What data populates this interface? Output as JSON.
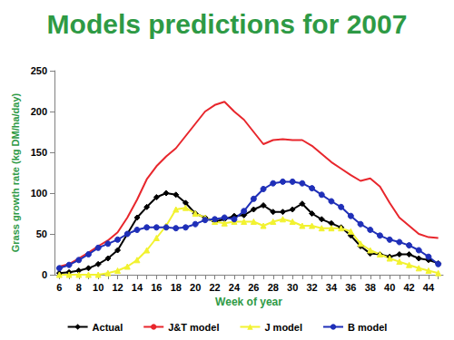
{
  "chart_data": {
    "type": "line",
    "title": "Models predictions for 2007",
    "x_label": "Week of year",
    "y_label": "Grass growth rate (kg DM/ha/day)",
    "categories": [
      6,
      null,
      8,
      null,
      10,
      null,
      12,
      null,
      14,
      null,
      16,
      null,
      18,
      null,
      20,
      null,
      22,
      null,
      24,
      null,
      26,
      null,
      28,
      null,
      30,
      null,
      32,
      null,
      34,
      null,
      36,
      null,
      38,
      null,
      40,
      null,
      42,
      null,
      44,
      null
    ],
    "ylim": [
      0,
      250
    ],
    "yticks": [
      0,
      50,
      100,
      150,
      200,
      250
    ],
    "grid": false,
    "legend": "bottom",
    "series": [
      {
        "name": "Actual",
        "color": "#000000",
        "marker": "diamond",
        "values": [
          2,
          3,
          5,
          8,
          13,
          20,
          30,
          50,
          70,
          83,
          95,
          100,
          98,
          88,
          75,
          70,
          65,
          68,
          72,
          73,
          80,
          85,
          77,
          77,
          80,
          87,
          75,
          68,
          63,
          58,
          48,
          35,
          26,
          25,
          22,
          25,
          25,
          20,
          18,
          14
        ]
      },
      {
        "name": "J&T model",
        "color": "#e8262c",
        "marker": "none",
        "values": [
          10,
          13,
          20,
          27,
          35,
          42,
          52,
          70,
          92,
          117,
          133,
          145,
          155,
          170,
          185,
          200,
          208,
          212,
          200,
          190,
          175,
          160,
          165,
          166,
          165,
          165,
          158,
          148,
          138,
          130,
          122,
          115,
          118,
          108,
          88,
          70,
          60,
          50,
          46,
          45
        ]
      },
      {
        "name": "J model",
        "color": "#f2f230",
        "marker": "triangle",
        "values": [
          0,
          0,
          0,
          0,
          0,
          2,
          5,
          10,
          18,
          30,
          45,
          60,
          80,
          82,
          75,
          70,
          65,
          63,
          65,
          65,
          65,
          60,
          65,
          68,
          65,
          60,
          60,
          57,
          57,
          57,
          53,
          38,
          30,
          25,
          20,
          16,
          12,
          8,
          5,
          2
        ]
      },
      {
        "name": "B model",
        "color": "#1f2fb8",
        "marker": "circle",
        "values": [
          8,
          12,
          18,
          25,
          33,
          38,
          43,
          50,
          55,
          58,
          58,
          58,
          57,
          58,
          62,
          67,
          68,
          70,
          68,
          78,
          93,
          105,
          112,
          114,
          114,
          112,
          106,
          98,
          90,
          83,
          72,
          62,
          55,
          48,
          43,
          40,
          36,
          30,
          22,
          13
        ]
      }
    ]
  }
}
